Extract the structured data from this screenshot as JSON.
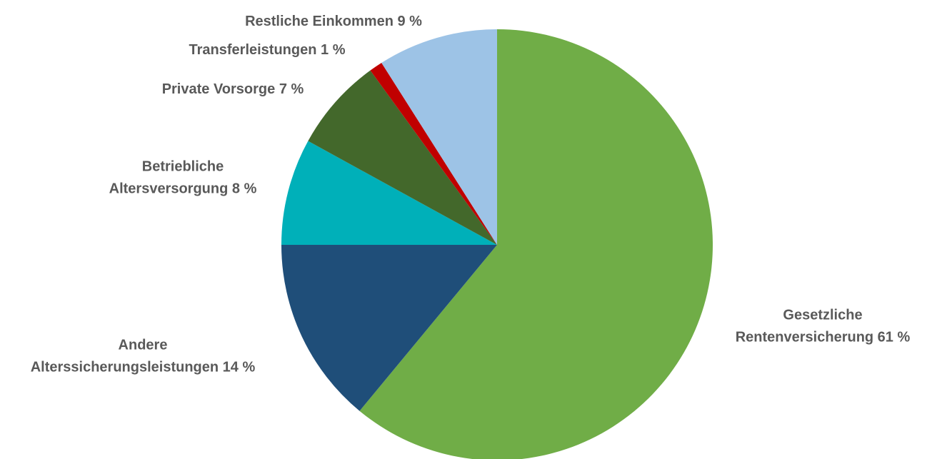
{
  "chart_data": {
    "type": "pie",
    "start": "12 o'clock",
    "direction": "clockwise",
    "slices": [
      {
        "label_lines": [
          "Gesetzliche",
          "Rentenversicherung 61 %"
        ],
        "value": 61,
        "color": "#70AD47"
      },
      {
        "label_lines": [
          "Andere",
          "Alterssicherungsleistungen 14 %"
        ],
        "value": 14,
        "color": "#1F4E79"
      },
      {
        "label_lines": [
          "Betriebliche",
          "Altersversorgung 8 %"
        ],
        "value": 8,
        "color": "#00B0B9"
      },
      {
        "label_lines": [
          "Private Vorsorge 7 %"
        ],
        "value": 7,
        "color": "#43682B"
      },
      {
        "label_lines": [
          "Transferleistungen 1 %"
        ],
        "value": 1,
        "color": "#C00000"
      },
      {
        "label_lines": [
          "Restliche Einkommen 9 %"
        ],
        "value": 9,
        "color": "#9DC3E6"
      }
    ]
  }
}
